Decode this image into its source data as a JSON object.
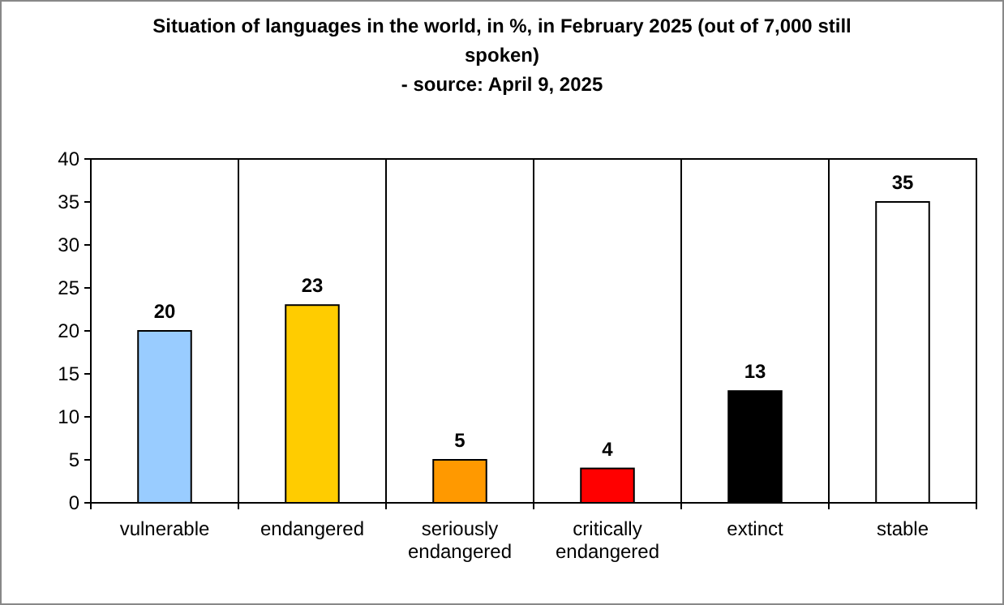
{
  "chart_data": {
    "type": "bar",
    "title": "Situation of languages in the world, in %, in February 2025 (out of 7,000 still spoken)",
    "subtitle": "- source: April 9, 2025",
    "categories": [
      "vulnerable",
      "endangered",
      "seriously endangered",
      "critically endangered",
      "extinct",
      "stable"
    ],
    "values": [
      20,
      23,
      5,
      4,
      13,
      35
    ],
    "colors": [
      "#99ccff",
      "#ffcc00",
      "#ff9900",
      "#ff0000",
      "#000000",
      "#ffffff"
    ],
    "ylim": [
      0,
      40
    ],
    "yticks": [
      0,
      5,
      10,
      15,
      20,
      25,
      30,
      35,
      40
    ],
    "grid": "x",
    "data_labels": true
  }
}
